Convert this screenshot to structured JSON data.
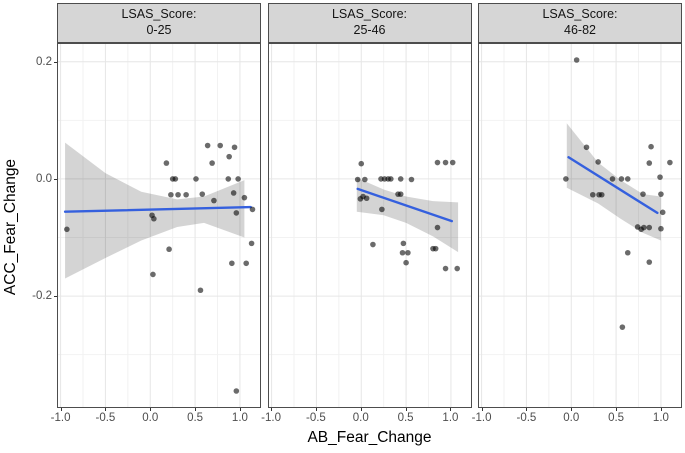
{
  "chart_data": {
    "type": "scatter",
    "facet_variable": "LSAS_Score",
    "xlabel": "AB_Fear_Change",
    "ylabel": "ACC_Fear_Change",
    "x_range": [
      -1.04,
      1.235
    ],
    "y_range": [
      -0.391,
      0.232
    ],
    "x_ticks": [
      -1.0,
      -0.5,
      0.0,
      0.5,
      1.0
    ],
    "x_tick_labels": [
      "-1.0",
      "-0.5",
      "0.0",
      "0.5",
      "1.0"
    ],
    "x_minor_ticks": [
      -0.75,
      -0.25,
      0.25,
      0.75
    ],
    "y_ticks": [
      0.2,
      0.0,
      -0.2
    ],
    "y_tick_labels": [
      "0.2",
      "0.0",
      "-0.2"
    ],
    "y_minor_ticks": [
      0.1,
      -0.1,
      -0.3
    ],
    "grid": true,
    "legend_position": "none",
    "colors": {
      "smooth_line": "#3560DE",
      "point": "rgba(0,0,0,0.58)",
      "band": "rgba(0,0,0,0.17)",
      "strip_bg": "#d6d6d6",
      "panel_border": "#4d4d4d",
      "grid_major": "#e6e6e6",
      "grid_minor": "#f2f2f2",
      "tick_label": "#4d4d4d"
    },
    "panels": [
      {
        "strip_line1": "LSAS_Score:",
        "strip_line2": "0-25",
        "points": [
          [
            -0.93,
            -0.086
          ],
          [
            0.02,
            -0.062
          ],
          [
            0.04,
            -0.068
          ],
          [
            0.03,
            -0.163
          ],
          [
            0.18,
            0.027
          ],
          [
            0.21,
            -0.12
          ],
          [
            0.23,
            -0.027
          ],
          [
            0.25,
            0.0
          ],
          [
            0.28,
            0.0
          ],
          [
            0.31,
            -0.027
          ],
          [
            0.4,
            -0.027
          ],
          [
            0.51,
            0.0
          ],
          [
            0.56,
            -0.19
          ],
          [
            0.58,
            -0.026
          ],
          [
            0.64,
            0.057
          ],
          [
            0.69,
            0.027
          ],
          [
            0.71,
            -0.037
          ],
          [
            0.78,
            0.057
          ],
          [
            0.87,
            0.0
          ],
          [
            0.88,
            0.038
          ],
          [
            0.91,
            -0.144
          ],
          [
            0.93,
            -0.024
          ],
          [
            0.94,
            0.054
          ],
          [
            0.96,
            -0.058
          ],
          [
            0.96,
            -0.362
          ],
          [
            0.98,
            0.0
          ],
          [
            1.05,
            -0.032
          ],
          [
            1.07,
            -0.144
          ],
          [
            1.13,
            -0.11
          ],
          [
            1.14,
            -0.052
          ]
        ],
        "line": [
          [
            -0.95,
            -0.056
          ],
          [
            1.12,
            -0.048
          ]
        ],
        "band": [
          [
            -0.95,
            -0.17,
            0.062
          ],
          [
            -0.5,
            -0.135,
            0.01
          ],
          [
            -0.1,
            -0.105,
            -0.022
          ],
          [
            0.3,
            -0.082,
            -0.035
          ],
          [
            0.6,
            -0.075,
            -0.03
          ],
          [
            1.05,
            -0.1,
            -0.002
          ]
        ]
      },
      {
        "strip_line1": "LSAS_Score:",
        "strip_line2": "25-46",
        "points": [
          [
            0.0,
            0.026
          ],
          [
            -0.04,
            -0.001
          ],
          [
            0.04,
            -0.001
          ],
          [
            -0.01,
            -0.034
          ],
          [
            0.02,
            -0.03
          ],
          [
            0.06,
            -0.033
          ],
          [
            0.13,
            -0.112
          ],
          [
            0.22,
            0.0
          ],
          [
            0.26,
            0.0
          ],
          [
            0.3,
            0.0
          ],
          [
            0.33,
            0.0
          ],
          [
            0.23,
            -0.052
          ],
          [
            0.41,
            -0.026
          ],
          [
            0.44,
            -0.026
          ],
          [
            0.44,
            0.0
          ],
          [
            0.47,
            -0.11
          ],
          [
            0.46,
            -0.126
          ],
          [
            0.52,
            -0.126
          ],
          [
            0.5,
            -0.143
          ],
          [
            0.56,
            -0.001
          ],
          [
            0.8,
            -0.119
          ],
          [
            0.83,
            -0.119
          ],
          [
            0.85,
            0.028
          ],
          [
            0.85,
            -0.083
          ],
          [
            0.94,
            0.028
          ],
          [
            0.94,
            -0.153
          ],
          [
            1.02,
            0.028
          ],
          [
            1.07,
            -0.153
          ]
        ],
        "line": [
          [
            -0.04,
            -0.017
          ],
          [
            1.01,
            -0.072
          ]
        ],
        "band": [
          [
            -0.05,
            -0.056,
            0.002
          ],
          [
            0.25,
            -0.062,
            -0.018
          ],
          [
            0.5,
            -0.075,
            -0.03
          ],
          [
            0.8,
            -0.098,
            -0.038
          ],
          [
            1.08,
            -0.125,
            -0.04
          ]
        ]
      },
      {
        "strip_line1": "LSAS_Score:",
        "strip_line2": "46-82",
        "points": [
          [
            0.06,
            0.203
          ],
          [
            -0.06,
            0.0
          ],
          [
            0.17,
            0.054
          ],
          [
            0.3,
            0.029
          ],
          [
            0.24,
            -0.027
          ],
          [
            0.31,
            -0.027
          ],
          [
            0.34,
            -0.027
          ],
          [
            0.46,
            0.0
          ],
          [
            0.56,
            0.0
          ],
          [
            0.63,
            0.0
          ],
          [
            0.57,
            -0.253
          ],
          [
            0.63,
            -0.126
          ],
          [
            0.74,
            -0.082
          ],
          [
            0.78,
            -0.086
          ],
          [
            0.81,
            -0.083
          ],
          [
            0.87,
            -0.083
          ],
          [
            0.8,
            -0.026
          ],
          [
            0.87,
            -0.142
          ],
          [
            0.89,
            0.055
          ],
          [
            0.87,
            0.027
          ],
          [
            0.99,
            0.003
          ],
          [
            1.0,
            -0.026
          ],
          [
            1.0,
            -0.085
          ],
          [
            1.02,
            -0.057
          ],
          [
            1.1,
            0.028
          ]
        ],
        "line": [
          [
            -0.03,
            0.037
          ],
          [
            0.96,
            -0.058
          ]
        ],
        "band": [
          [
            -0.05,
            -0.015,
            0.095
          ],
          [
            0.3,
            -0.042,
            0.028
          ],
          [
            0.55,
            -0.068,
            -0.002
          ],
          [
            0.8,
            -0.092,
            -0.026
          ],
          [
            1.0,
            -0.105,
            -0.03
          ]
        ]
      }
    ]
  }
}
